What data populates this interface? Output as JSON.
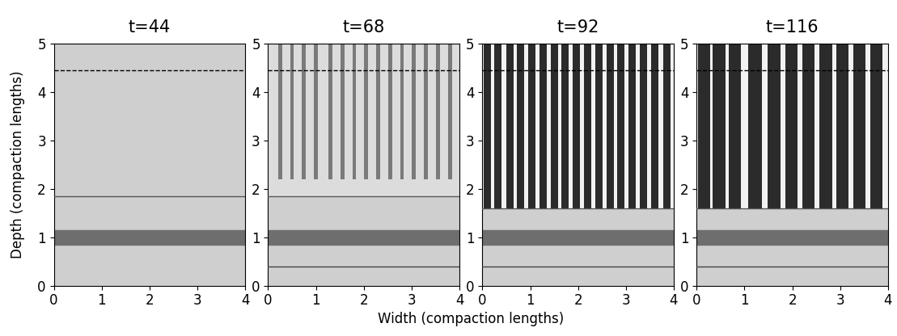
{
  "figure": {
    "xlabel": "Width (compaction lengths)",
    "ylabel": "Depth (compaction lengths)"
  },
  "chart_data": [
    {
      "type": "heatmap",
      "title": "t=44",
      "xlim": [
        0,
        4
      ],
      "ylim": [
        0,
        5
      ],
      "xticks": [
        0,
        1,
        2,
        3,
        4
      ],
      "yticks": [
        0,
        1,
        2,
        3,
        4,
        5
      ],
      "front_depth": 1.85,
      "dashed_depth": 4.45,
      "dark_band": [
        0.85,
        1.15
      ],
      "baseline_depth": null,
      "channel_color": "#888888",
      "channels": []
    },
    {
      "type": "heatmap",
      "title": "t=68",
      "xlim": [
        0,
        4
      ],
      "ylim": [
        0,
        5
      ],
      "xticks": [
        0,
        1,
        2,
        3,
        4
      ],
      "yticks": [
        0,
        1,
        2,
        3,
        4,
        5
      ],
      "front_depth": 1.85,
      "dashed_depth": 4.45,
      "dark_band": [
        0.85,
        1.15
      ],
      "baseline_depth": 0.4,
      "channel_color": "#7a7a7a",
      "channels": [
        {
          "x": 0.25,
          "width": 0.08,
          "bottom": 2.2,
          "top": 5
        },
        {
          "x": 0.5,
          "width": 0.08,
          "bottom": 2.2,
          "top": 5
        },
        {
          "x": 0.75,
          "width": 0.08,
          "bottom": 2.2,
          "top": 5
        },
        {
          "x": 1.0,
          "width": 0.08,
          "bottom": 2.2,
          "top": 5
        },
        {
          "x": 1.3,
          "width": 0.08,
          "bottom": 2.2,
          "top": 5
        },
        {
          "x": 1.55,
          "width": 0.08,
          "bottom": 2.2,
          "top": 5
        },
        {
          "x": 1.8,
          "width": 0.08,
          "bottom": 2.2,
          "top": 5
        },
        {
          "x": 2.05,
          "width": 0.08,
          "bottom": 2.2,
          "top": 5
        },
        {
          "x": 2.3,
          "width": 0.08,
          "bottom": 2.2,
          "top": 5
        },
        {
          "x": 2.55,
          "width": 0.08,
          "bottom": 2.2,
          "top": 5
        },
        {
          "x": 2.8,
          "width": 0.08,
          "bottom": 2.2,
          "top": 5
        },
        {
          "x": 3.05,
          "width": 0.08,
          "bottom": 2.2,
          "top": 5
        },
        {
          "x": 3.3,
          "width": 0.08,
          "bottom": 2.2,
          "top": 5
        },
        {
          "x": 3.55,
          "width": 0.08,
          "bottom": 2.2,
          "top": 5
        },
        {
          "x": 3.8,
          "width": 0.08,
          "bottom": 2.2,
          "top": 5
        }
      ]
    },
    {
      "type": "heatmap",
      "title": "t=92",
      "xlim": [
        0,
        4
      ],
      "ylim": [
        0,
        5
      ],
      "xticks": [
        0,
        1,
        2,
        3,
        4
      ],
      "yticks": [
        0,
        1,
        2,
        3,
        4,
        5
      ],
      "front_depth": 1.6,
      "dashed_depth": 4.45,
      "dark_band": [
        0.85,
        1.15
      ],
      "baseline_depth": 0.4,
      "channel_color": "#2b2b2b",
      "channels": [
        {
          "x": 0.1,
          "width": 0.15,
          "bottom": 1.6,
          "top": 5
        },
        {
          "x": 0.33,
          "width": 0.15,
          "bottom": 1.6,
          "top": 5
        },
        {
          "x": 0.57,
          "width": 0.15,
          "bottom": 1.6,
          "top": 5
        },
        {
          "x": 0.8,
          "width": 0.15,
          "bottom": 1.6,
          "top": 5
        },
        {
          "x": 1.03,
          "width": 0.15,
          "bottom": 1.6,
          "top": 5
        },
        {
          "x": 1.27,
          "width": 0.15,
          "bottom": 1.6,
          "top": 5
        },
        {
          "x": 1.5,
          "width": 0.15,
          "bottom": 1.6,
          "top": 5
        },
        {
          "x": 1.73,
          "width": 0.15,
          "bottom": 1.6,
          "top": 5
        },
        {
          "x": 1.97,
          "width": 0.15,
          "bottom": 1.6,
          "top": 5
        },
        {
          "x": 2.2,
          "width": 0.15,
          "bottom": 1.6,
          "top": 5
        },
        {
          "x": 2.43,
          "width": 0.15,
          "bottom": 1.6,
          "top": 5
        },
        {
          "x": 2.67,
          "width": 0.15,
          "bottom": 1.6,
          "top": 5
        },
        {
          "x": 2.9,
          "width": 0.15,
          "bottom": 1.6,
          "top": 5
        },
        {
          "x": 3.13,
          "width": 0.15,
          "bottom": 1.6,
          "top": 5
        },
        {
          "x": 3.37,
          "width": 0.15,
          "bottom": 1.6,
          "top": 5
        },
        {
          "x": 3.6,
          "width": 0.15,
          "bottom": 1.6,
          "top": 5
        },
        {
          "x": 3.85,
          "width": 0.15,
          "bottom": 1.6,
          "top": 5
        }
      ]
    },
    {
      "type": "heatmap",
      "title": "t=116",
      "xlim": [
        0,
        4
      ],
      "ylim": [
        0,
        5
      ],
      "xticks": [
        0,
        1,
        2,
        3,
        4
      ],
      "yticks": [
        0,
        1,
        2,
        3,
        4,
        5
      ],
      "front_depth": 1.6,
      "dashed_depth": 4.45,
      "dark_band": [
        0.85,
        1.15
      ],
      "baseline_depth": 0.4,
      "channel_color": "#2b2b2b",
      "channels": [
        {
          "x": 0.15,
          "width": 0.26,
          "bottom": 1.6,
          "top": 5
        },
        {
          "x": 0.47,
          "width": 0.26,
          "bottom": 1.6,
          "top": 5
        },
        {
          "x": 0.8,
          "width": 0.26,
          "bottom": 1.6,
          "top": 5
        },
        {
          "x": 1.22,
          "width": 0.3,
          "bottom": 1.6,
          "top": 5
        },
        {
          "x": 1.62,
          "width": 0.26,
          "bottom": 1.6,
          "top": 5
        },
        {
          "x": 1.98,
          "width": 0.26,
          "bottom": 1.6,
          "top": 5
        },
        {
          "x": 2.34,
          "width": 0.26,
          "bottom": 1.6,
          "top": 5
        },
        {
          "x": 2.7,
          "width": 0.26,
          "bottom": 1.6,
          "top": 5
        },
        {
          "x": 3.05,
          "width": 0.26,
          "bottom": 1.6,
          "top": 5
        },
        {
          "x": 3.4,
          "width": 0.26,
          "bottom": 1.6,
          "top": 5
        },
        {
          "x": 3.76,
          "width": 0.26,
          "bottom": 1.6,
          "top": 5
        }
      ]
    }
  ]
}
